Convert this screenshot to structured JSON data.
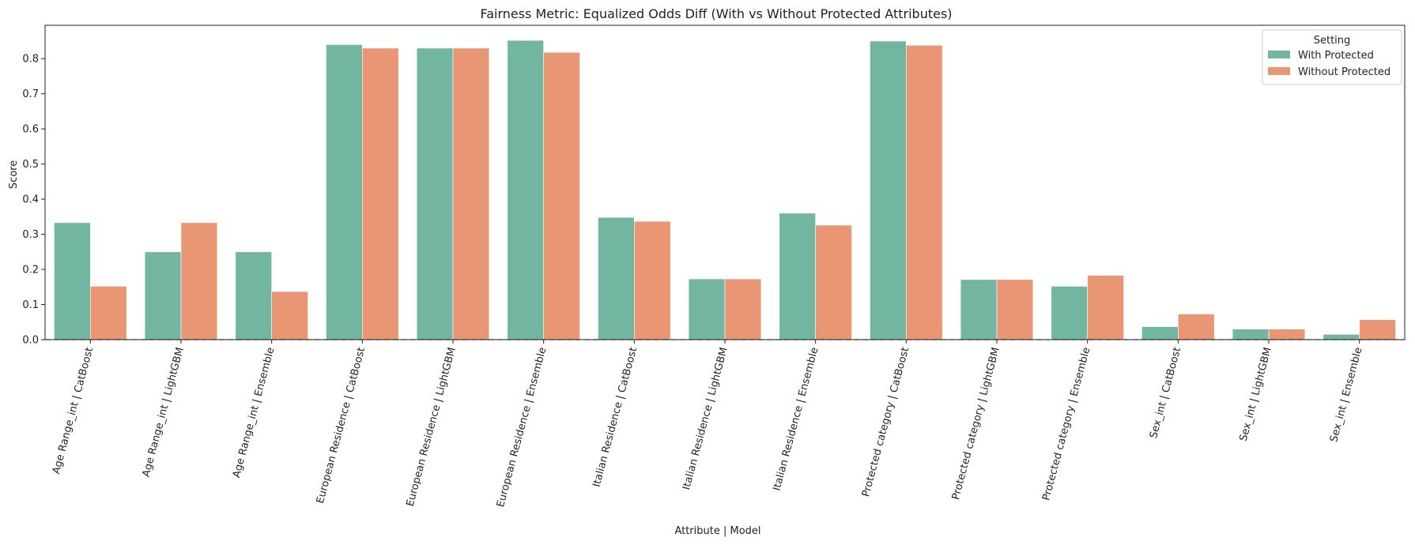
{
  "chart_data": {
    "type": "bar",
    "title": "Fairness Metric: Equalized Odds Diff (With vs Without Protected Attributes)",
    "xlabel": "Attribute | Model",
    "ylabel": "Score",
    "ylim": [
      0,
      0.895
    ],
    "yticks": [
      0.0,
      0.1,
      0.2,
      0.3,
      0.4,
      0.5,
      0.6,
      0.7,
      0.8
    ],
    "yticks_labels": [
      "0.0",
      "0.1",
      "0.2",
      "0.3",
      "0.4",
      "0.5",
      "0.6",
      "0.7",
      "0.8"
    ],
    "grid": false,
    "baseline": 0,
    "legend": {
      "title": "Setting",
      "position": "top-right"
    },
    "categories": [
      "Age Range_int | CatBoost",
      "Age Range_int | LightGBM",
      "Age Range_int | Ensemble",
      "European Residence | CatBoost",
      "European Residence | LightGBM",
      "European Residence | Ensemble",
      "Italian Residence | CatBoost",
      "Italian Residence | LightGBM",
      "Italian Residence | Ensemble",
      "Protected category | CatBoost",
      "Protected category | LightGBM",
      "Protected category | Ensemble",
      "Sex_int | CatBoost",
      "Sex_int | LightGBM",
      "Sex_int | Ensemble"
    ],
    "series": [
      {
        "name": "With Protected",
        "color": "#72b6a1",
        "values": [
          0.333,
          0.25,
          0.25,
          0.84,
          0.83,
          0.852,
          0.348,
          0.173,
          0.36,
          0.85,
          0.171,
          0.152,
          0.037,
          0.03,
          0.015
        ]
      },
      {
        "name": "Without Protected",
        "color": "#e99675",
        "values": [
          0.152,
          0.333,
          0.137,
          0.83,
          0.83,
          0.818,
          0.337,
          0.173,
          0.326,
          0.838,
          0.171,
          0.183,
          0.073,
          0.03,
          0.057
        ]
      }
    ]
  }
}
